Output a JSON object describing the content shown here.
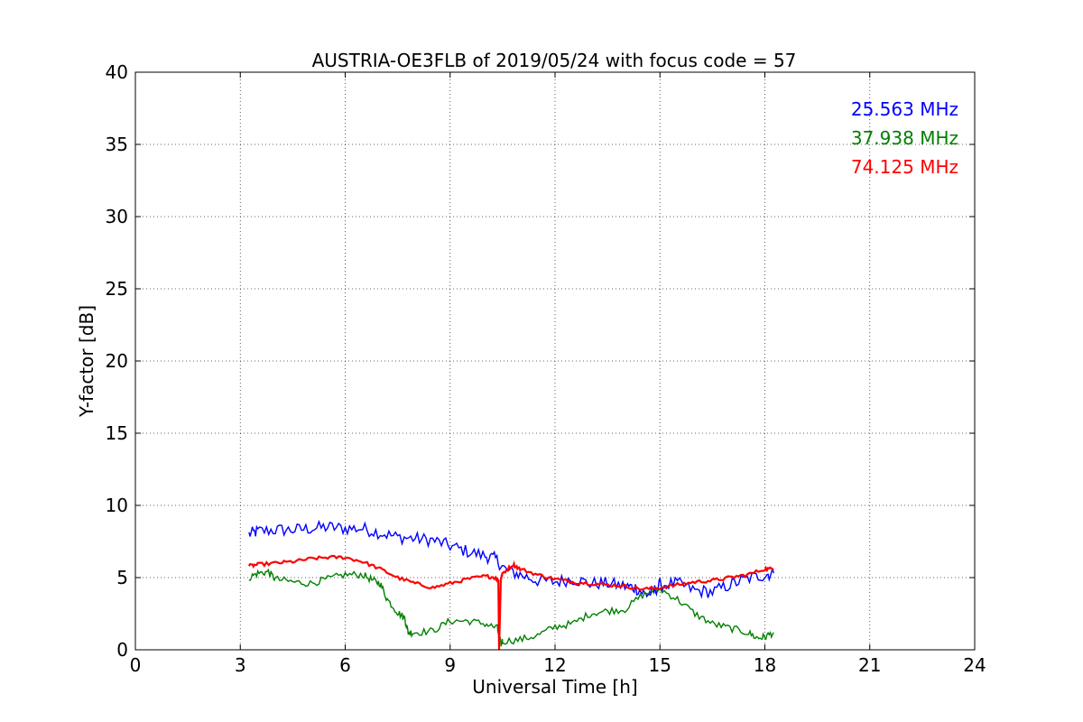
{
  "chart_data": {
    "type": "line",
    "title": "AUSTRIA-OE3FLB of 2019/05/24 with focus code = 57",
    "xlabel": "Universal Time [h]",
    "ylabel": "Y-factor [dB]",
    "xlim": [
      0,
      24
    ],
    "ylim": [
      0,
      40
    ],
    "xticks": [
      0,
      3,
      6,
      9,
      12,
      15,
      18,
      21,
      24
    ],
    "yticks": [
      0,
      5,
      10,
      15,
      20,
      25,
      30,
      35,
      40
    ],
    "grid": true,
    "legend_placement": "top-right",
    "series": [
      {
        "name": "25.563 MHz",
        "color": "#0000ff",
        "noise": 0.45,
        "x": [
          3.25,
          3.5,
          4.0,
          4.5,
          5.0,
          5.5,
          6.0,
          6.5,
          7.0,
          7.5,
          8.0,
          8.5,
          9.0,
          9.5,
          10.0,
          10.3,
          10.6,
          11.0,
          11.5,
          12.0,
          12.5,
          13.0,
          13.5,
          14.0,
          14.3,
          14.6,
          14.8,
          15.0,
          15.5,
          16.0,
          16.5,
          17.0,
          17.5,
          18.0,
          18.25
        ],
        "y": [
          8.0,
          8.2,
          8.3,
          8.3,
          8.4,
          8.5,
          8.4,
          8.4,
          8.1,
          7.8,
          7.7,
          7.6,
          7.2,
          6.8,
          6.5,
          6.3,
          5.5,
          5.2,
          4.8,
          4.7,
          4.9,
          4.6,
          4.6,
          4.4,
          4.3,
          3.8,
          4.0,
          4.5,
          4.6,
          4.1,
          4.0,
          4.5,
          4.9,
          5.2,
          5.3
        ]
      },
      {
        "name": "37.938 MHz",
        "color": "#008000",
        "noise": 0.25,
        "x": [
          3.25,
          3.5,
          3.8,
          4.0,
          4.5,
          5.0,
          5.5,
          6.0,
          6.5,
          6.8,
          7.0,
          7.2,
          7.5,
          7.7,
          7.8,
          8.0,
          8.5,
          9.0,
          9.5,
          10.0,
          10.35,
          10.45,
          10.5,
          11.0,
          11.5,
          12.0,
          12.5,
          13.0,
          13.5,
          14.0,
          14.5,
          15.0,
          15.5,
          16.0,
          16.5,
          17.0,
          17.5,
          17.8,
          18.0,
          18.25
        ],
        "y": [
          5.0,
          5.3,
          5.4,
          4.9,
          4.7,
          4.6,
          4.9,
          5.2,
          5.2,
          4.8,
          4.6,
          3.5,
          2.6,
          2.2,
          1.2,
          1.2,
          1.3,
          2.0,
          2.0,
          1.8,
          1.5,
          0.4,
          0.6,
          0.7,
          1.0,
          1.6,
          1.8,
          2.5,
          2.7,
          2.8,
          3.8,
          4.2,
          3.5,
          2.5,
          1.8,
          1.5,
          1.2,
          0.8,
          0.9,
          1.2
        ]
      },
      {
        "name": "74.125 MHz",
        "color": "#ff0000",
        "noise": 0.12,
        "x": [
          3.25,
          3.5,
          4.0,
          4.5,
          5.0,
          5.5,
          6.0,
          6.5,
          7.0,
          7.5,
          8.0,
          8.5,
          9.0,
          9.5,
          10.0,
          10.3,
          10.38,
          10.4,
          10.45,
          10.5,
          10.8,
          11.0,
          11.5,
          12.0,
          12.5,
          13.0,
          13.5,
          14.0,
          14.5,
          15.0,
          15.5,
          16.0,
          16.5,
          17.0,
          17.5,
          18.0,
          18.25
        ],
        "y": [
          5.8,
          5.9,
          6.0,
          6.1,
          6.3,
          6.4,
          6.4,
          6.1,
          5.6,
          5.0,
          4.6,
          4.3,
          4.6,
          4.9,
          5.1,
          5.0,
          4.8,
          0.0,
          4.9,
          5.3,
          5.9,
          5.6,
          5.2,
          4.9,
          4.7,
          4.6,
          4.5,
          4.4,
          4.2,
          4.3,
          4.5,
          4.7,
          4.8,
          5.0,
          5.2,
          5.6,
          5.6
        ]
      }
    ]
  }
}
